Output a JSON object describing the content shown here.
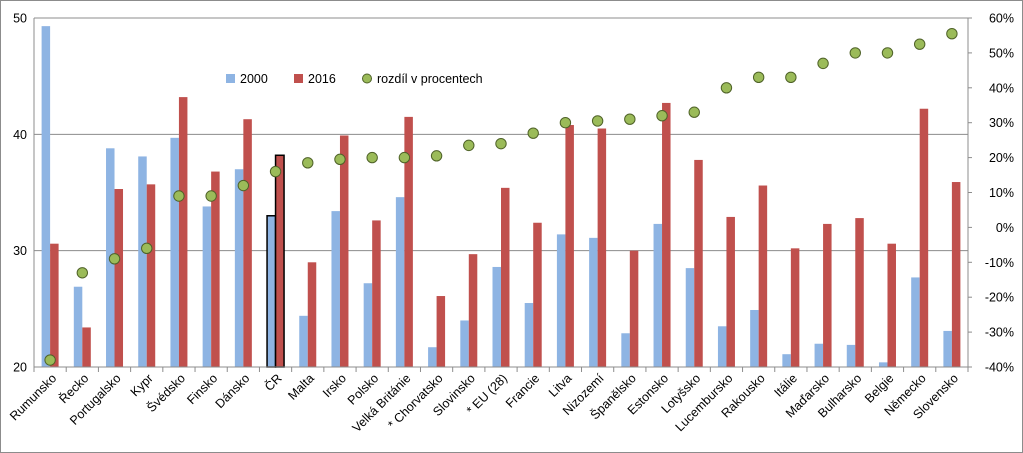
{
  "chart_data": {
    "type": "bar",
    "categories": [
      "Rumunsko",
      "Řecko",
      "Portugalsko",
      "Kypr",
      "Švédsko",
      "Finsko",
      "Dánsko",
      "ČR",
      "Malta",
      "Irsko",
      "Polsko",
      "Velká Británie",
      "* Chorvatsko",
      "Slovinsko",
      "* EU (28)",
      "Francie",
      "Litva",
      "Nizozemí",
      "Španělsko",
      "Estonsko",
      "Lotyšsko",
      "Lucembursko",
      "Rakousko",
      "Itálie",
      "Maďarsko",
      "Bulharsko",
      "Belgie",
      "Německo",
      "Slovensko"
    ],
    "series": [
      {
        "name": "2000",
        "type": "bar",
        "axis": "left",
        "color": "#8eb4e3",
        "values": [
          49.3,
          26.9,
          38.8,
          38.1,
          39.7,
          33.8,
          37.0,
          33.0,
          24.4,
          33.4,
          27.2,
          34.6,
          21.7,
          24.0,
          28.6,
          25.5,
          31.4,
          31.1,
          22.9,
          32.3,
          28.5,
          23.5,
          24.9,
          21.1,
          22.0,
          21.9,
          20.4,
          27.7,
          23.1
        ]
      },
      {
        "name": "2016",
        "type": "bar",
        "axis": "left",
        "color": "#c0504d",
        "values": [
          30.6,
          23.4,
          35.3,
          35.7,
          43.2,
          36.8,
          41.3,
          38.2,
          29.0,
          39.9,
          32.6,
          41.5,
          26.1,
          29.7,
          35.4,
          32.4,
          40.8,
          40.5,
          30.0,
          42.7,
          37.8,
          32.9,
          35.6,
          30.2,
          32.3,
          32.8,
          30.6,
          42.2,
          35.9
        ]
      },
      {
        "name": "rozdíl v procentech",
        "type": "scatter",
        "axis": "right",
        "color": "#76923c",
        "values": [
          -38,
          -13,
          -9,
          -6,
          9,
          9,
          12,
          16,
          18.5,
          19.5,
          20,
          20,
          20.5,
          23.5,
          24,
          27,
          30,
          30.5,
          31,
          32,
          33,
          40,
          43,
          43,
          47,
          50,
          50,
          52.5,
          55.5
        ]
      }
    ],
    "y_left": {
      "min": 20,
      "max": 50,
      "ticks": [
        "20",
        "30",
        "40",
        "50"
      ]
    },
    "y_right": {
      "min": -40,
      "max": 60,
      "ticks": [
        "-40%",
        "-30%",
        "-20%",
        "-10%",
        "0%",
        "10%",
        "20%",
        "30%",
        "40%",
        "50%",
        "60%"
      ]
    },
    "highlighted_category": "ČR",
    "grid": true,
    "legend_position": "top-left-inside",
    "title": "",
    "xlabel": "",
    "ylabel": ""
  }
}
